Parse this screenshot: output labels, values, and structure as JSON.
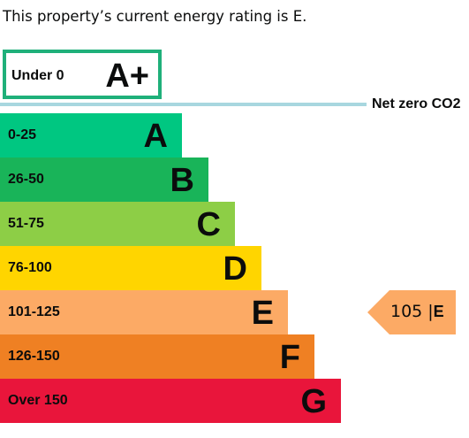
{
  "intro_text": "This property’s current energy rating is E.",
  "chart_data": {
    "type": "bar",
    "top_band": {
      "range": "Under 0",
      "letter": "A+",
      "color": "#1fb07a"
    },
    "net_zero_label": "Net zero CO2",
    "bands": [
      {
        "range": "0-25",
        "letter": "A",
        "color": "#00c781"
      },
      {
        "range": "26-50",
        "letter": "B",
        "color": "#19b459"
      },
      {
        "range": "51-75",
        "letter": "C",
        "color": "#8dce46"
      },
      {
        "range": "76-100",
        "letter": "D",
        "color": "#ffd500"
      },
      {
        "range": "101-125",
        "letter": "E",
        "color": "#fcaa65"
      },
      {
        "range": "126-150",
        "letter": "F",
        "color": "#ef8023"
      },
      {
        "range": "Over 150",
        "letter": "G",
        "color": "#e9153b"
      }
    ],
    "current": {
      "value": "105",
      "separator": "|",
      "letter": "E",
      "color": "#fcaa65"
    }
  }
}
